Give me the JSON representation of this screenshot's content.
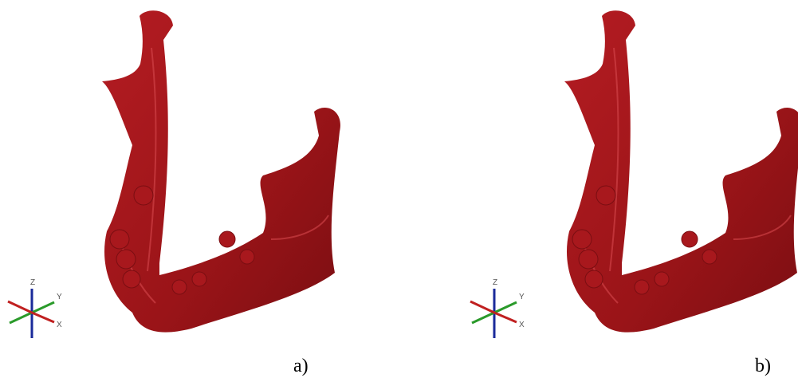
{
  "panels": [
    {
      "label": "a)",
      "axes": {
        "z": "Z",
        "y": "Y",
        "x": "X"
      }
    },
    {
      "label": "b)",
      "axes": {
        "z": "Z",
        "y": "Y",
        "x": "X"
      }
    }
  ]
}
